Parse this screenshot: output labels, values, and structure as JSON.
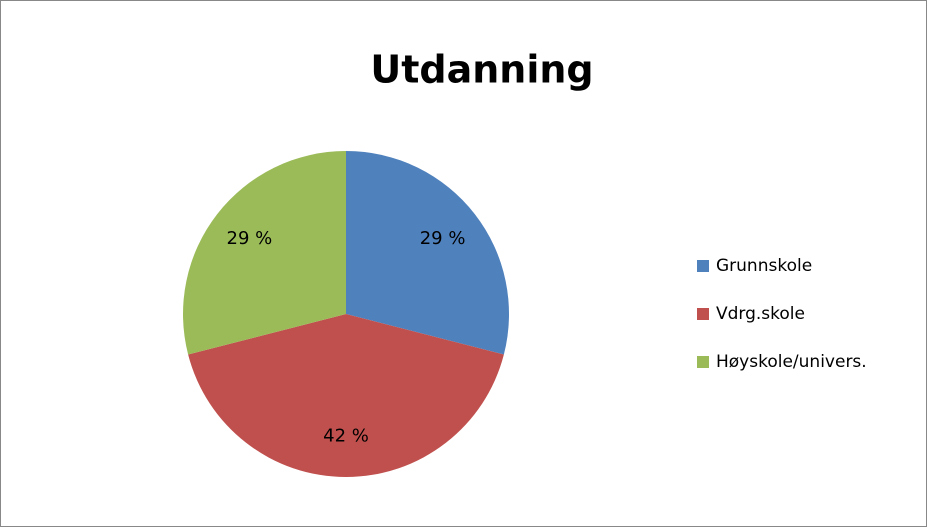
{
  "chart_data": {
    "type": "pie",
    "title": "Utdanning",
    "categories": [
      "Grunnskole",
      "Vdrg.skole",
      "Høyskole/univers."
    ],
    "values": [
      29,
      42,
      29
    ],
    "value_labels": [
      "29 %",
      "42 %",
      "29 %"
    ],
    "colors": [
      "#4f81bd",
      "#c0504d",
      "#9bbb59"
    ],
    "legend": "right"
  }
}
